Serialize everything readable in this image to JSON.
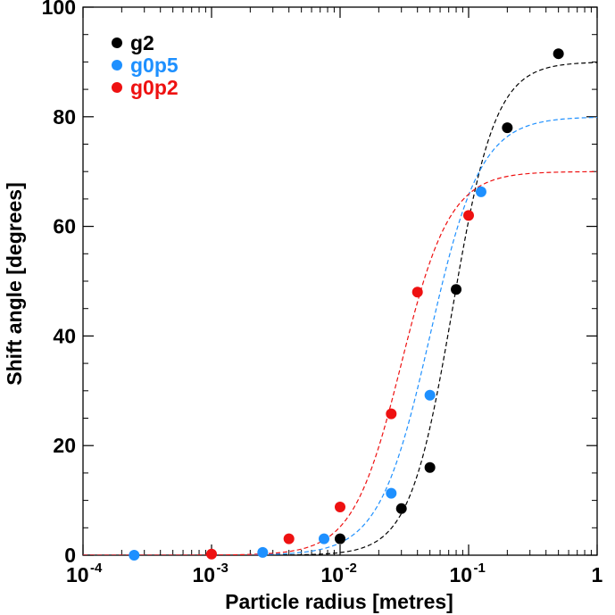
{
  "chart_data": {
    "type": "scatter",
    "title": "",
    "xlabel": "Particle radius [metres]",
    "ylabel": "Shift angle [degrees]",
    "xscale": "log",
    "xlim": [
      0.0001,
      1
    ],
    "ylim": [
      0,
      100
    ],
    "grid": false,
    "legend_position": "top-left",
    "x_ticks": [
      {
        "value": 0.0001,
        "base": "10",
        "exp": "-4"
      },
      {
        "value": 0.001,
        "base": "10",
        "exp": "-3"
      },
      {
        "value": 0.01,
        "base": "10",
        "exp": "-2"
      },
      {
        "value": 0.1,
        "base": "10",
        "exp": "-1"
      },
      {
        "value": 1,
        "base": "1",
        "exp": ""
      }
    ],
    "y_ticks": [
      {
        "value": 0,
        "label": "0"
      },
      {
        "value": 20,
        "label": "20"
      },
      {
        "value": 40,
        "label": "40"
      },
      {
        "value": 60,
        "label": "60"
      },
      {
        "value": 80,
        "label": "80"
      },
      {
        "value": 100,
        "label": "100"
      }
    ],
    "series": [
      {
        "name": "g2",
        "color": "#000000",
        "points": [
          [
            0.01,
            3
          ],
          [
            0.03,
            8.5
          ],
          [
            0.05,
            16
          ],
          [
            0.08,
            48.5
          ],
          [
            0.2,
            78
          ],
          [
            0.5,
            91.5
          ]
        ],
        "fit": {
          "max": 90,
          "x50": 0.075,
          "n": 2.6
        }
      },
      {
        "name": "g0p5",
        "color": "#1e90ff",
        "points": [
          [
            0.00025,
            0
          ],
          [
            0.0025,
            0.5
          ],
          [
            0.0075,
            3
          ],
          [
            0.025,
            11.3
          ],
          [
            0.05,
            29.2
          ],
          [
            0.125,
            66.3
          ]
        ],
        "fit": {
          "max": 80,
          "x50": 0.05,
          "n": 2.2
        }
      },
      {
        "name": "g0p2",
        "color": "#ee1111",
        "points": [
          [
            0.001,
            0.2
          ],
          [
            0.004,
            3
          ],
          [
            0.01,
            8.8
          ],
          [
            0.025,
            25.8
          ],
          [
            0.04,
            48
          ],
          [
            0.1,
            62
          ]
        ],
        "fit": {
          "max": 70,
          "x50": 0.03,
          "n": 2.3
        }
      }
    ]
  }
}
